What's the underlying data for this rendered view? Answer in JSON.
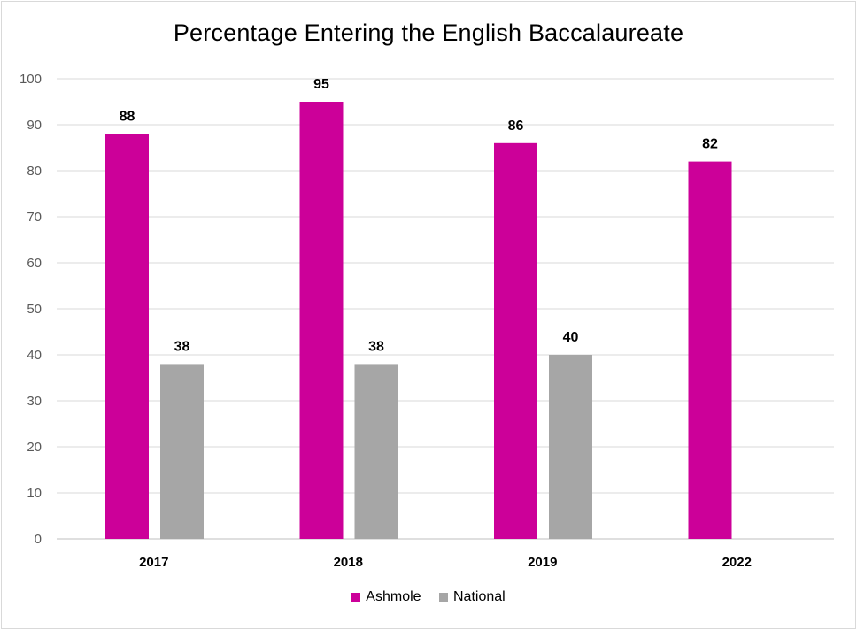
{
  "chart_data": {
    "type": "bar",
    "title": "Percentage Entering the English Baccalaureate",
    "categories": [
      "2017",
      "2018",
      "2019",
      "2022"
    ],
    "series": [
      {
        "name": "Ashmole",
        "color": "#cc0099",
        "values": [
          88,
          95,
          86,
          82
        ]
      },
      {
        "name": "National",
        "color": "#a6a6a6",
        "values": [
          38,
          38,
          40,
          null
        ]
      }
    ],
    "ylim": [
      0,
      100
    ],
    "yticks": [
      0,
      10,
      20,
      30,
      40,
      50,
      60,
      70,
      80,
      90,
      100
    ],
    "grid": true,
    "legend_position": "bottom"
  }
}
